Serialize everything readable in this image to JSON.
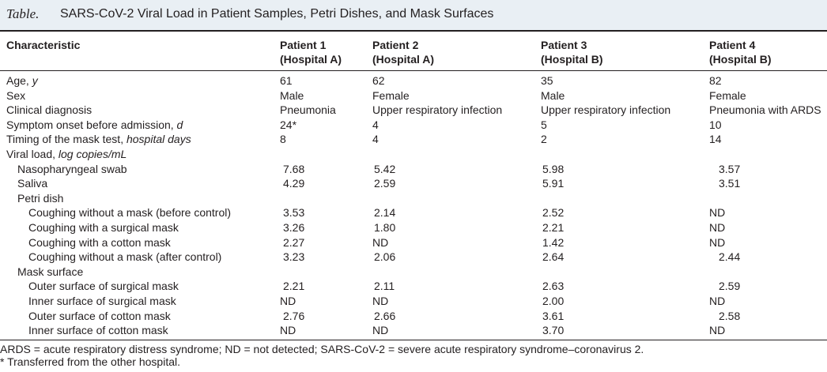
{
  "title": {
    "lead": "Table.",
    "text": "SARS-CoV-2 Viral Load in Patient Samples, Petri Dishes, and Mask Surfaces"
  },
  "columns": {
    "characteristic": "Characteristic",
    "p1_line1": "Patient 1",
    "p1_line2": "(Hospital A)",
    "p2_line1": "Patient 2",
    "p2_line2": "(Hospital A)",
    "p3_line1": "Patient 3",
    "p3_line2": "(Hospital B)",
    "p4_line1": "Patient 4",
    "p4_line2": "(Hospital B)"
  },
  "rows": [
    {
      "label": "Age, y",
      "indent": 0,
      "values": [
        "61",
        "62",
        "35",
        "82"
      ]
    },
    {
      "label": "Sex",
      "indent": 0,
      "values": [
        "Male",
        "Female",
        "Male",
        "Female"
      ]
    },
    {
      "label": "Clinical diagnosis",
      "indent": 0,
      "values": [
        "Pneumonia",
        "Upper respiratory infection",
        "Upper respiratory infection",
        "Pneumonia with ARDS"
      ]
    },
    {
      "label": "Symptom onset before admission, d",
      "indent": 0,
      "values": [
        "24*",
        "4",
        "5",
        "10"
      ]
    },
    {
      "label": "Timing of the mask test, hospital days",
      "indent": 0,
      "values": [
        "8",
        "4",
        "2",
        "14"
      ]
    },
    {
      "label": "Viral load, log copies/mL",
      "indent": 0,
      "values": [
        "",
        "",
        "",
        ""
      ]
    },
    {
      "label": "Nasopharyngeal swab",
      "indent": 1,
      "values": [
        "7.68",
        "5.42",
        "5.98",
        "3.57"
      ]
    },
    {
      "label": "Saliva",
      "indent": 1,
      "values": [
        "4.29",
        "2.59",
        "5.91",
        "3.51"
      ]
    },
    {
      "label": "Petri dish",
      "indent": 1,
      "values": [
        "",
        "",
        "",
        ""
      ]
    },
    {
      "label": "Coughing without a mask (before control)",
      "indent": 2,
      "values": [
        "3.53",
        "2.14",
        "2.52",
        "ND"
      ]
    },
    {
      "label": "Coughing with a surgical mask",
      "indent": 2,
      "values": [
        "3.26",
        "1.80",
        "2.21",
        "ND"
      ]
    },
    {
      "label": "Coughing with a cotton mask",
      "indent": 2,
      "values": [
        "2.27",
        "ND",
        "1.42",
        "ND"
      ]
    },
    {
      "label": "Coughing without a mask (after control)",
      "indent": 2,
      "values": [
        "3.23",
        "2.06",
        "2.64",
        "2.44"
      ]
    },
    {
      "label": "Mask surface",
      "indent": 1,
      "values": [
        "",
        "",
        "",
        ""
      ]
    },
    {
      "label": "Outer surface of surgical mask",
      "indent": 2,
      "values": [
        "2.21",
        "2.11",
        "2.63",
        "2.59"
      ]
    },
    {
      "label": "Inner surface of surgical mask",
      "indent": 2,
      "values": [
        "ND",
        "ND",
        "2.00",
        "ND"
      ]
    },
    {
      "label": "Outer surface of cotton mask",
      "indent": 2,
      "values": [
        "2.76",
        "2.66",
        "3.61",
        "2.58"
      ]
    },
    {
      "label": "Inner surface of cotton mask",
      "indent": 2,
      "values": [
        "ND",
        "ND",
        "3.70",
        "ND"
      ]
    }
  ],
  "footnotes": {
    "abbrev": "ARDS = acute respiratory distress syndrome; ND = not detected; SARS-CoV-2 = severe acute respiratory syndrome–coronavirus 2.",
    "star": "* Transferred from the other hospital."
  }
}
